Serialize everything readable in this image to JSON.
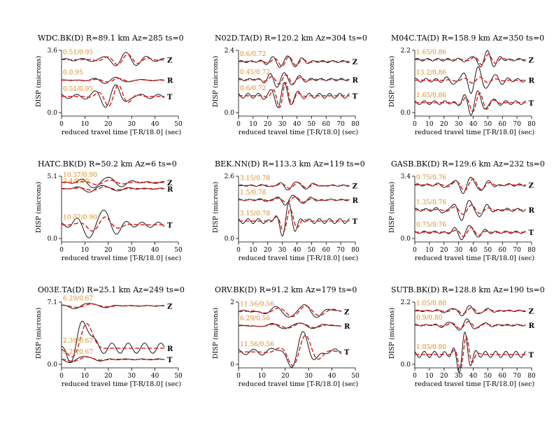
{
  "chart_data": [
    {
      "type": "line",
      "title": "WDC.BK(D) R=89.1 km Az=285 ts=0",
      "xlabel": "reduced travel time [T-R/18.0] (sec)",
      "ylabel": "DISP (microns)",
      "xlim": [
        0,
        50
      ],
      "xticks": [
        "0",
        "10",
        "20",
        "30",
        "40",
        "50"
      ],
      "ytop_label": "3.6",
      "ybottom_label": "0.0",
      "trace_end": 44,
      "traces": [
        {
          "component": "Z",
          "annotation": "0.51/0.95",
          "offset": 0.85,
          "obs_amp": 0.13,
          "syn_amp": 0.09,
          "t0": 26,
          "period": 9,
          "width": 9
        },
        {
          "component": "R",
          "annotation": "0.0.95",
          "offset": 0.52,
          "obs_amp": 0.05,
          "syn_amp": 0.03,
          "t0": 22,
          "period": 10,
          "width": 10
        },
        {
          "component": "T",
          "annotation": "0.51/0.95",
          "offset": 0.26,
          "obs_amp": 0.22,
          "syn_amp": 0.19,
          "t0": 22,
          "period": 9,
          "width": 7
        }
      ]
    },
    {
      "type": "line",
      "title": "N02D.TA(D) R=120.2 km Az=304 ts=0",
      "xlabel": "reduced travel time [T-R/18.0] (sec)",
      "ylabel": "DISP (microns)",
      "xlim": [
        0,
        80
      ],
      "xticks": [
        "0",
        "10",
        "20",
        "30",
        "40",
        "50",
        "60",
        "70",
        "80"
      ],
      "ytop_label": "2.4",
      "ybottom_label": "0.0",
      "trace_end": 76,
      "traces": [
        {
          "component": "Z",
          "annotation": "0.6/0.72",
          "offset": 0.82,
          "obs_amp": 0.11,
          "syn_amp": 0.08,
          "t0": 32,
          "period": 10,
          "width": 12
        },
        {
          "component": "R",
          "annotation": "0.45/0.72",
          "offset": 0.53,
          "obs_amp": 0.13,
          "syn_amp": 0.08,
          "t0": 30,
          "period": 10,
          "width": 12
        },
        {
          "component": "T",
          "annotation": "0.6/0.72",
          "offset": 0.27,
          "obs_amp": 0.26,
          "syn_amp": 0.22,
          "t0": 30,
          "period": 9,
          "width": 8
        }
      ]
    },
    {
      "type": "line",
      "title": "M04C.TA(D) R=158.9 km Az=350 ts=0",
      "xlabel": "reduced travel time [T-R/18.0] (sec)",
      "ylabel": "DISP (microns)",
      "xlim": [
        0,
        80
      ],
      "xticks": [
        "0",
        "10",
        "20",
        "30",
        "40",
        "50",
        "60",
        "70",
        "80"
      ],
      "ytop_label": "2.2",
      "ybottom_label": "0.0",
      "trace_end": 76,
      "traces": [
        {
          "component": "Z",
          "annotation": "1.65/0.86",
          "offset": 0.85,
          "obs_amp": 0.14,
          "syn_amp": 0.09,
          "t0": 48,
          "period": 10,
          "width": 10
        },
        {
          "component": "R",
          "annotation": "13.2/0.86",
          "offset": 0.52,
          "obs_amp": 0.2,
          "syn_amp": 0.05,
          "t0": 42,
          "period": 11,
          "width": 14
        },
        {
          "component": "T",
          "annotation": "1.65/0.86",
          "offset": 0.16,
          "obs_amp": 0.2,
          "syn_amp": 0.16,
          "t0": 42,
          "period": 10,
          "width": 10
        }
      ]
    },
    {
      "type": "line",
      "title": "HATC.BK(D) R=50.2 km Az=6 ts=0",
      "xlabel": "reduced travel time [T-R/18.0] (sec)",
      "ylabel": "DISP (microns)",
      "xlim": [
        0,
        50
      ],
      "xticks": [
        "0",
        "10",
        "20",
        "30",
        "40",
        "50"
      ],
      "ytop_label": "5.1",
      "ybottom_label": "0.0",
      "trace_end": 44,
      "traces": [
        {
          "component": "Z",
          "annotation": "10.37/0.90",
          "offset": 0.9,
          "obs_amp": 0.1,
          "syn_amp": 0.04,
          "t0": 18,
          "period": 12,
          "width": 10
        },
        {
          "component": "R",
          "annotation": "3.4/0.90",
          "offset": 0.8,
          "obs_amp": 0.06,
          "syn_amp": 0.03,
          "t0": 16,
          "period": 12,
          "width": 10
        },
        {
          "component": "T",
          "annotation": "10.37/0.90",
          "offset": 0.22,
          "obs_amp": 0.28,
          "syn_amp": 0.13,
          "t0": 16,
          "period": 12,
          "width": 8
        }
      ]
    },
    {
      "type": "line",
      "title": "BEK.NN(D) R=113.3 km Az=119 ts=0",
      "xlabel": "reduced travel time [T-R/18.0] (sec)",
      "ylabel": "DISP (microns)",
      "xlim": [
        0,
        80
      ],
      "xticks": [
        "0",
        "10",
        "20",
        "30",
        "40",
        "50",
        "60",
        "70",
        "80"
      ],
      "ytop_label": "2.6",
      "ybottom_label": "0.0",
      "trace_end": 76,
      "traces": [
        {
          "component": "Z",
          "annotation": "3.15/0.78",
          "offset": 0.85,
          "obs_amp": 0.07,
          "syn_amp": 0.05,
          "t0": 38,
          "period": 12,
          "width": 14
        },
        {
          "component": "R",
          "annotation": "1.5/0.78",
          "offset": 0.62,
          "obs_amp": 0.08,
          "syn_amp": 0.05,
          "t0": 36,
          "period": 12,
          "width": 14
        },
        {
          "component": "T",
          "annotation": "3.15/0.78",
          "offset": 0.28,
          "obs_amp": 0.26,
          "syn_amp": 0.2,
          "t0": 33,
          "period": 10,
          "width": 8
        }
      ]
    },
    {
      "type": "line",
      "title": "GASB.BK(D) R=129.6 km Az=232 ts=0",
      "xlabel": "reduced travel time [T-R/18.0] (sec)",
      "ylabel": "DISP (microns)",
      "xlim": [
        0,
        80
      ],
      "xticks": [
        "0",
        "10",
        "20",
        "30",
        "40",
        "50",
        "60",
        "70",
        "80"
      ],
      "ytop_label": "3.4",
      "ybottom_label": "0.0",
      "trace_end": 76,
      "traces": [
        {
          "component": "Z",
          "annotation": "0.75/0.76",
          "offset": 0.86,
          "obs_amp": 0.13,
          "syn_amp": 0.1,
          "t0": 37,
          "period": 12,
          "width": 14
        },
        {
          "component": "R",
          "annotation": "1.35/0.76",
          "offset": 0.46,
          "obs_amp": 0.16,
          "syn_amp": 0.08,
          "t0": 36,
          "period": 12,
          "width": 14
        },
        {
          "component": "T",
          "annotation": "0.75/0.76",
          "offset": 0.1,
          "obs_amp": 0.13,
          "syn_amp": 0.08,
          "t0": 36,
          "period": 11,
          "width": 10
        }
      ]
    },
    {
      "type": "line",
      "title": "O03E.TA(D) R=25.1 km Az=249 ts=0",
      "xlabel": "reduced travel time [T-R/18.0] (sec)",
      "ylabel": "DISP (microns)",
      "xlim": [
        0,
        50
      ],
      "xticks": [
        "0",
        "10",
        "20",
        "30",
        "40",
        "50"
      ],
      "ytop_label": "7.1",
      "ybottom_label": "0.0",
      "trace_end": 44,
      "traces": [
        {
          "component": "Z",
          "annotation": "6.29/0.67",
          "offset": 0.94,
          "obs_amp": 0.05,
          "syn_amp": 0.03,
          "t0": 10,
          "period": 14,
          "width": 10
        },
        {
          "component": "R",
          "annotation": "2.39/0.67",
          "offset": 0.26,
          "obs_amp": 0.55,
          "syn_amp": 0.5,
          "t0": 8,
          "period": 22,
          "width": 5
        },
        {
          "component": "T",
          "annotation": "6.29/0.67",
          "offset": 0.08,
          "obs_amp": 0.06,
          "syn_amp": 0.04,
          "t0": 8,
          "period": 14,
          "width": 8
        }
      ]
    },
    {
      "type": "line",
      "title": "ORV.BK(D) R=91.2 km Az=179 ts=0",
      "xlabel": "reduced travel time [T-R/18.0] (sec)",
      "ylabel": "DISP (microns)",
      "xlim": [
        0,
        50
      ],
      "xticks": [
        "0",
        "10",
        "20",
        "30",
        "40",
        "50"
      ],
      "ytop_label": "2",
      "ybottom_label": "0",
      "trace_end": 44,
      "traces": [
        {
          "component": "Z",
          "annotation": "11.56/0.56",
          "offset": 0.85,
          "obs_amp": 0.11,
          "syn_amp": 0.09,
          "t0": 26,
          "period": 12,
          "width": 14
        },
        {
          "component": "R",
          "annotation": "6.29/0.56",
          "offset": 0.62,
          "obs_amp": 0.05,
          "syn_amp": 0.04,
          "t0": 24,
          "period": 12,
          "width": 14
        },
        {
          "component": "T",
          "annotation": "11.56/0.56",
          "offset": 0.2,
          "obs_amp": 0.3,
          "syn_amp": 0.28,
          "t0": 26,
          "period": 12,
          "width": 8
        }
      ]
    },
    {
      "type": "line",
      "title": "SUTB.BK(D) R=128.8 km Az=190 ts=0",
      "xlabel": "reduced travel time [T-R/18.0] (sec)",
      "ylabel": "DISP (microns)",
      "xlim": [
        0,
        80
      ],
      "xticks": [
        "0",
        "10",
        "20",
        "30",
        "40",
        "50",
        "60",
        "70",
        "80"
      ],
      "ytop_label": "2.2",
      "ybottom_label": "0.0",
      "trace_end": 76,
      "traces": [
        {
          "component": "Z",
          "annotation": "1.05/0.80",
          "offset": 0.86,
          "obs_amp": 0.08,
          "syn_amp": 0.05,
          "t0": 36,
          "period": 12,
          "width": 14
        },
        {
          "component": "R",
          "annotation": "0.9/0.80",
          "offset": 0.63,
          "obs_amp": 0.09,
          "syn_amp": 0.06,
          "t0": 34,
          "period": 12,
          "width": 14
        },
        {
          "component": "T",
          "annotation": "1.05/0.80",
          "offset": 0.16,
          "obs_amp": 0.33,
          "syn_amp": 0.3,
          "t0": 33,
          "period": 9,
          "width": 6
        }
      ]
    }
  ]
}
